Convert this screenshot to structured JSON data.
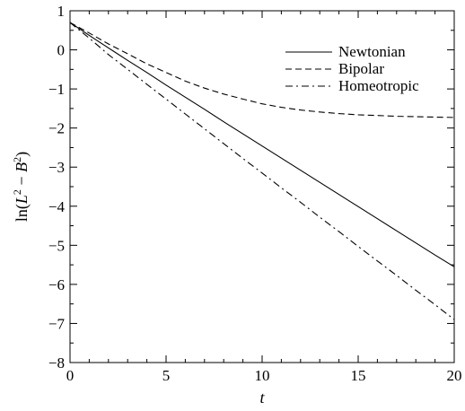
{
  "chart_data": {
    "type": "line",
    "title": "",
    "xlabel": "t",
    "ylabel": {
      "prefix": "ln(",
      "L": "L",
      "sup1": "2",
      "minus": " − ",
      "B": "B",
      "sup2": "2",
      "suffix": ")"
    },
    "xlim": [
      0,
      20
    ],
    "ylim": [
      -8,
      1
    ],
    "x_ticks": [
      0,
      5,
      10,
      15,
      20
    ],
    "x_tick_labels": [
      "0",
      "5",
      "10",
      "15",
      "20"
    ],
    "y_ticks": [
      1,
      0,
      -1,
      -2,
      -3,
      -4,
      -5,
      -6,
      -7,
      -8
    ],
    "y_tick_labels": [
      "1",
      "0",
      "−1",
      "−2",
      "−3",
      "−4",
      "−5",
      "−6",
      "−7",
      "−8"
    ],
    "grid": false,
    "legend_position": "top-right",
    "series": [
      {
        "name": "Newtonian",
        "style": "solid",
        "x": [
          0,
          1,
          2,
          3,
          4,
          5,
          6,
          7,
          8,
          9,
          10,
          11,
          12,
          13,
          14,
          15,
          16,
          17,
          18,
          19,
          20
        ],
        "y": [
          0.7,
          0.37,
          0.05,
          -0.27,
          -0.58,
          -0.9,
          -1.21,
          -1.52,
          -1.84,
          -2.15,
          -2.46,
          -2.77,
          -3.08,
          -3.39,
          -3.7,
          -4.01,
          -4.32,
          -4.63,
          -4.94,
          -5.25,
          -5.55
        ]
      },
      {
        "name": "Bipolar",
        "style": "dashed",
        "x": [
          0,
          1,
          2,
          3,
          4,
          5,
          6,
          7,
          8,
          9,
          10,
          11,
          12,
          13,
          14,
          15,
          16,
          17,
          18,
          19,
          20
        ],
        "y": [
          0.7,
          0.43,
          0.15,
          -0.1,
          -0.36,
          -0.58,
          -0.8,
          -0.98,
          -1.13,
          -1.26,
          -1.38,
          -1.47,
          -1.54,
          -1.59,
          -1.63,
          -1.66,
          -1.68,
          -1.7,
          -1.71,
          -1.72,
          -1.73
        ]
      },
      {
        "name": "Homeotropic",
        "style": "dashdot",
        "x": [
          0,
          1,
          2,
          3,
          4,
          5,
          6,
          7,
          8,
          9,
          10,
          11,
          12,
          13,
          14,
          15,
          16,
          17,
          18,
          19,
          20
        ],
        "y": [
          0.7,
          0.3,
          -0.12,
          -0.5,
          -0.88,
          -1.26,
          -1.64,
          -2.02,
          -2.4,
          -2.78,
          -3.15,
          -3.53,
          -3.9,
          -4.28,
          -4.65,
          -5.03,
          -5.4,
          -5.77,
          -6.15,
          -6.52,
          -6.9
        ]
      }
    ]
  }
}
